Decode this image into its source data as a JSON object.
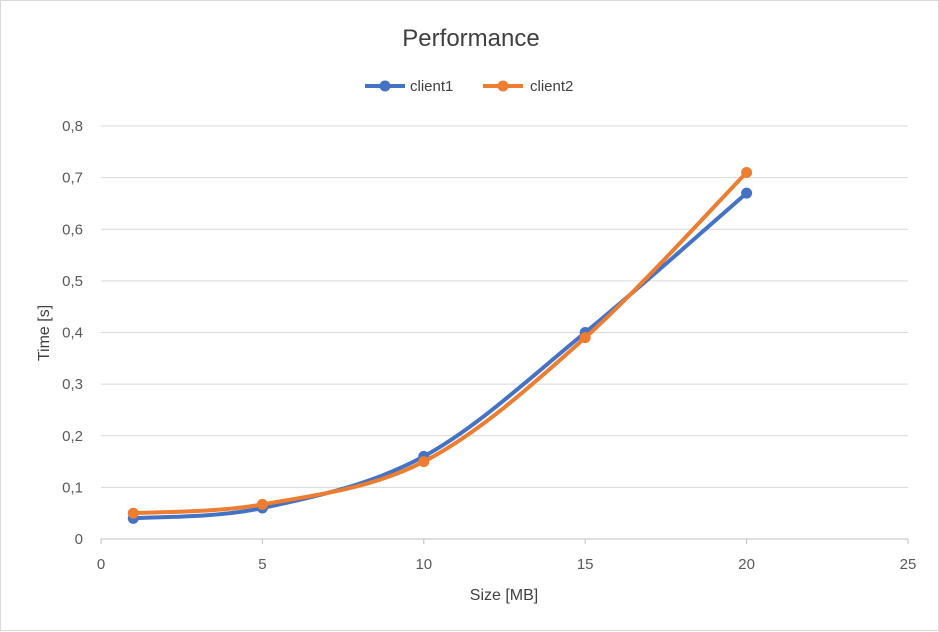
{
  "chart_data": {
    "type": "line",
    "title": "Performance",
    "xlabel": "Size [MB]",
    "ylabel": "Time [s]",
    "xlim": [
      0,
      25
    ],
    "ylim": [
      0,
      0.8
    ],
    "x_ticks": [
      "0",
      "5",
      "10",
      "15",
      "20",
      "25"
    ],
    "y_ticks": [
      "0",
      "0,1",
      "0,2",
      "0,3",
      "0,4",
      "0,5",
      "0,6",
      "0,7",
      "0,8"
    ],
    "grid": true,
    "legend_position": "top",
    "smooth": true,
    "series": [
      {
        "name": "client1",
        "color": "#4472c4",
        "x": [
          1,
          5,
          10,
          15,
          20
        ],
        "y": [
          0.04,
          0.06,
          0.16,
          0.4,
          0.67
        ]
      },
      {
        "name": "client2",
        "color": "#ed7d31",
        "x": [
          1,
          5,
          10,
          15,
          20
        ],
        "y": [
          0.05,
          0.067,
          0.15,
          0.39,
          0.71
        ]
      }
    ]
  }
}
